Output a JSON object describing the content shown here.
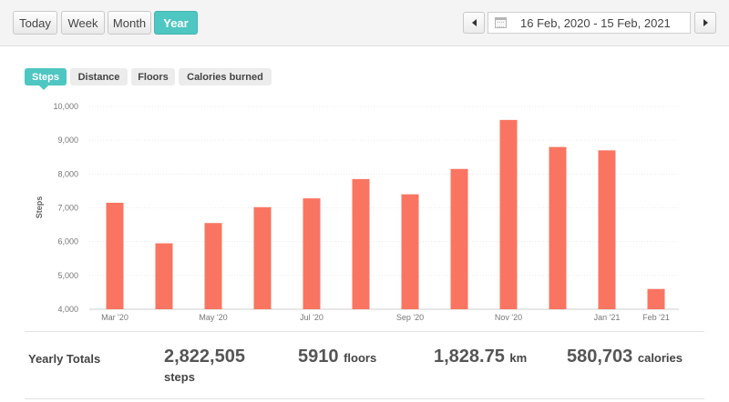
{
  "period_tabs": [
    {
      "label": "Today",
      "active": false
    },
    {
      "label": "Week",
      "active": false
    },
    {
      "label": "Month",
      "active": false
    },
    {
      "label": "Year",
      "active": true
    }
  ],
  "date_range": {
    "label": "16 Feb, 2020 - 15 Feb, 2021"
  },
  "metric_tabs": [
    {
      "label": "Steps",
      "active": true
    },
    {
      "label": "Distance",
      "active": false
    },
    {
      "label": "Floors",
      "active": false
    },
    {
      "label": "Calories burned",
      "active": false
    }
  ],
  "chart_data": {
    "type": "bar",
    "ylabel": "Steps",
    "ylim": [
      4000,
      10000
    ],
    "yticks": [
      4000,
      5000,
      6000,
      7000,
      8000,
      9000,
      10000
    ],
    "ytick_labels": [
      "4,000",
      "5,000",
      "6,000",
      "7,000",
      "8,000",
      "9,000",
      "10,000"
    ],
    "xtick_labels": [
      "Mar '20",
      "",
      "May '20",
      "",
      "Jul '20",
      "",
      "Sep '20",
      "",
      "Nov '20",
      "",
      "Jan '21",
      "Feb '21"
    ],
    "values": [
      7150,
      5950,
      6550,
      7020,
      7280,
      7850,
      7400,
      8150,
      9600,
      8800,
      8700,
      4600
    ],
    "bar_color": "#f97561",
    "grid": true
  },
  "totals": {
    "title": "Yearly Totals",
    "steps_value": "2,822,505",
    "steps_unit": "steps",
    "floors_value": "5910",
    "floors_unit": "floors",
    "distance_value": "1,828.75",
    "distance_unit": "km",
    "calories_value": "580,703",
    "calories_unit": "calories"
  }
}
